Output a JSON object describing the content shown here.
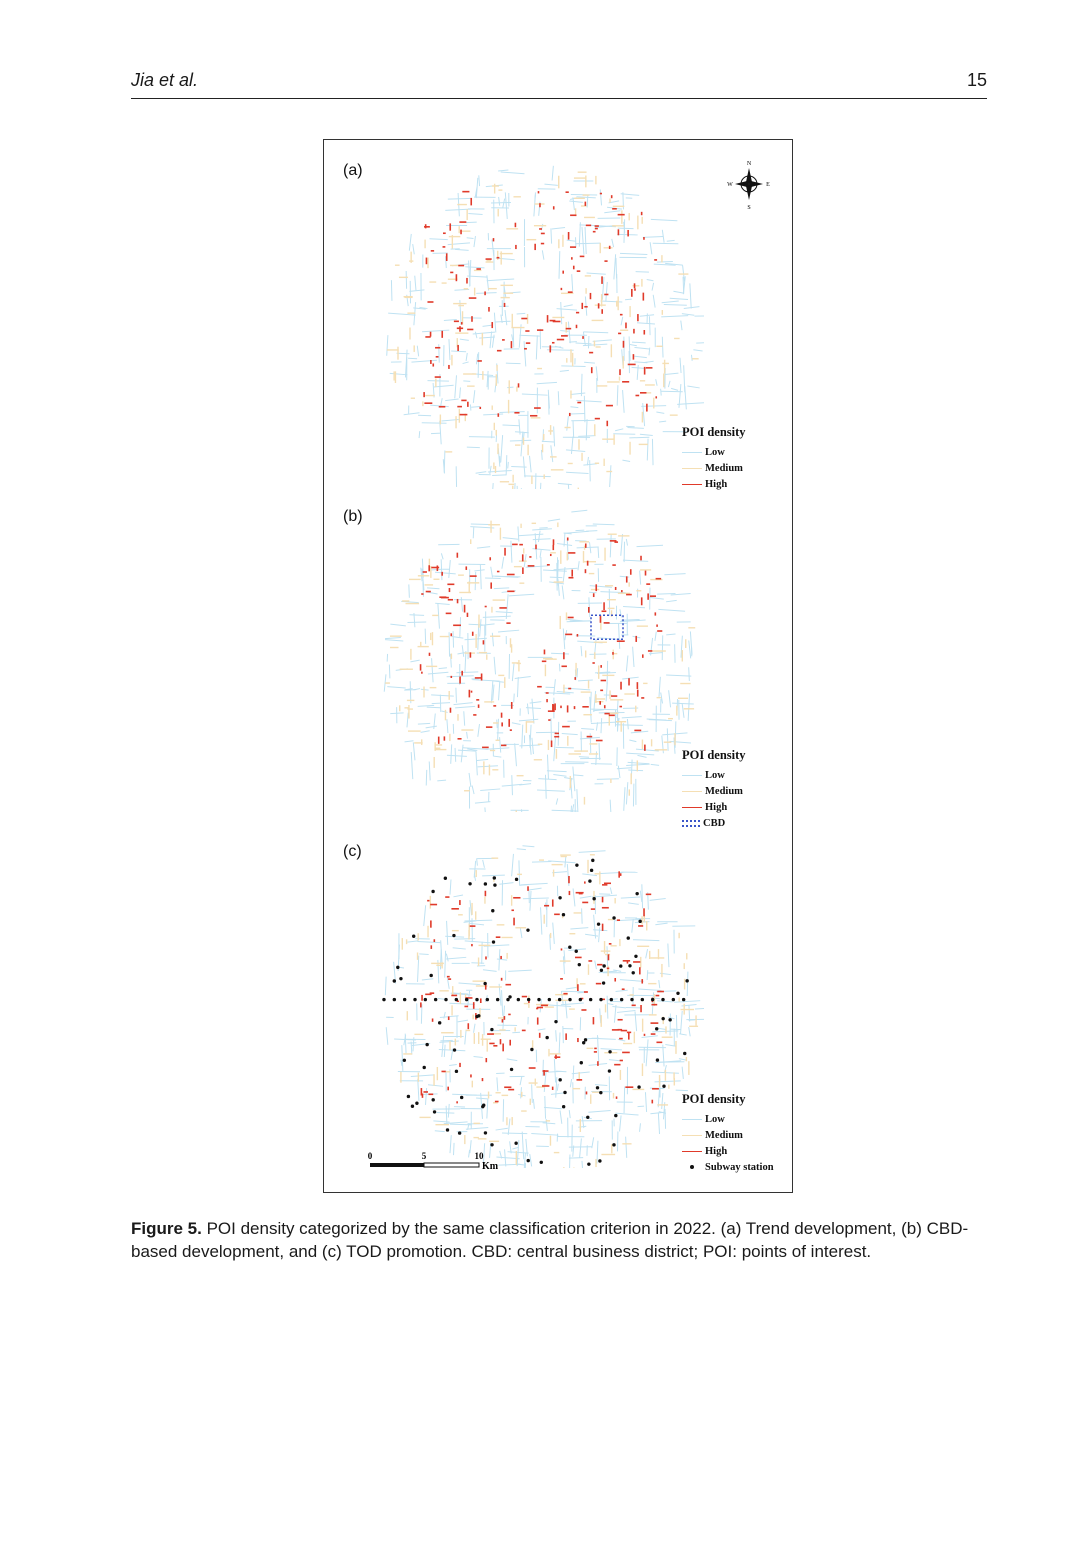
{
  "header": {
    "author": "Jia et al.",
    "page_number": "15"
  },
  "figure": {
    "panels": [
      {
        "label": "(a)",
        "legend_title": "POI density",
        "legend": [
          "Low",
          "Medium",
          "High"
        ]
      },
      {
        "label": "(b)",
        "legend_title": "POI density",
        "legend": [
          "Low",
          "Medium",
          "High",
          "CBD"
        ]
      },
      {
        "label": "(c)",
        "legend_title": "POI density",
        "legend": [
          "Low",
          "Medium",
          "High",
          "Subway station"
        ]
      }
    ],
    "scale_bar": {
      "ticks": [
        "0",
        "5",
        "10"
      ],
      "unit": "Km"
    },
    "compass": {
      "n": "N",
      "s": "S",
      "e": "E",
      "w": "W"
    },
    "colors": {
      "low": "#bfe2f2",
      "medium": "#f5dfb4",
      "high": "#e03a2a",
      "cbd": "#3a55c8",
      "station": "#111111"
    }
  },
  "caption": {
    "label": "Figure 5.",
    "text": " POI density categorized by the same classification criterion in 2022. (a) Trend development, (b) CBD-based development, and (c) TOD promotion. CBD: central business district; POI: points of interest."
  }
}
